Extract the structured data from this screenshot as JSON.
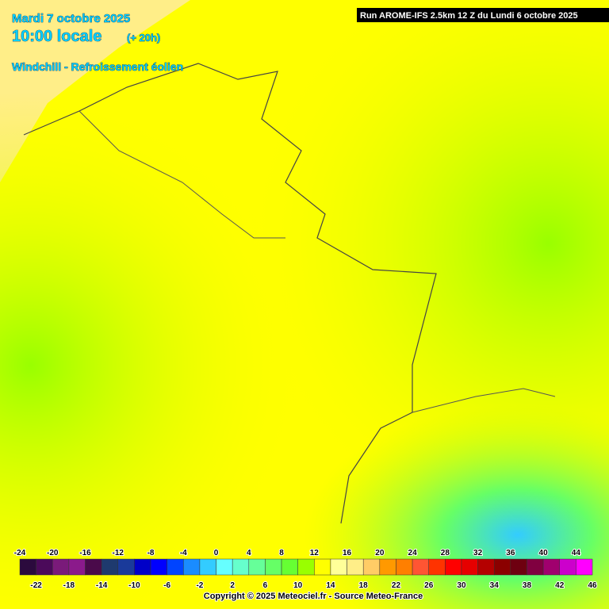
{
  "header": {
    "date": "Mardi 7 octobre 2025",
    "time": "10:00 locale",
    "lead": "(+ 20h)",
    "parameter": "Windchill - Refroissement éolien",
    "run": "Run AROME-IFS 2.5km 12 Z du Lundi 6 octobre 2025"
  },
  "legend": {
    "ticks": [
      -24,
      -22,
      -20,
      -18,
      -16,
      -14,
      -12,
      -10,
      -8,
      -6,
      -4,
      -2,
      0,
      2,
      4,
      6,
      8,
      10,
      12,
      14,
      16,
      18,
      20,
      22,
      24,
      26,
      28,
      30,
      32,
      34,
      36,
      38,
      40,
      42,
      44,
      46
    ],
    "colors": [
      "#2b0a3d",
      "#4b0a5a",
      "#7a1a7a",
      "#8b1a8b",
      "#4a0a4a",
      "#1e3a6e",
      "#1a3a9a",
      "#0000c8",
      "#0000ff",
      "#0044ff",
      "#1a8cff",
      "#33ccff",
      "#66ffff",
      "#66ffcc",
      "#66ff99",
      "#66ff66",
      "#66ff33",
      "#99ff00",
      "#ffff00",
      "#ffff99",
      "#ffee88",
      "#ffcc66",
      "#ff9900",
      "#ff7f00",
      "#ff5533",
      "#ff3300",
      "#ff0000",
      "#e60000",
      "#b40000",
      "#8b0000",
      "#6e0010",
      "#800040",
      "#a0006e",
      "#cc00cc",
      "#ff00ff"
    ]
  },
  "footer": {
    "copyright": "Copyright © 2025 Meteociel.fr - Source Meteo-France"
  }
}
